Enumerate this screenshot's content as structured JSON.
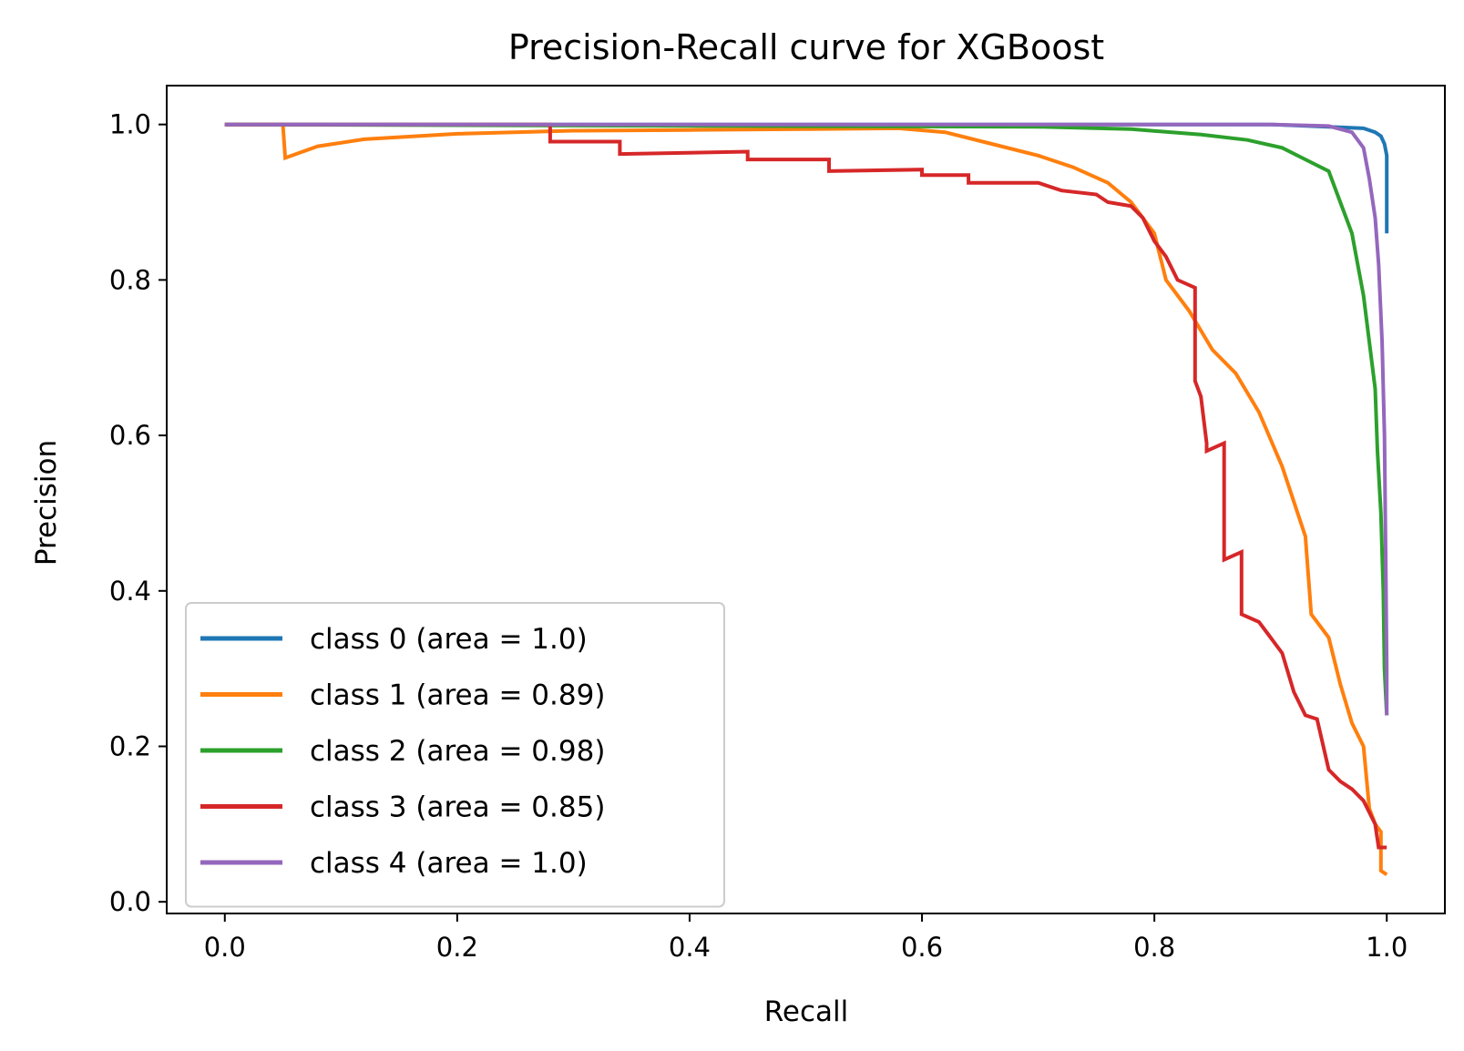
{
  "chart_data": {
    "type": "line",
    "title": "Precision-Recall curve for XGBoost",
    "xlabel": "Recall",
    "ylabel": "Precision",
    "xlim": [
      -0.05,
      1.05
    ],
    "ylim": [
      -0.015,
      1.05
    ],
    "xticks": [
      "0.0",
      "0.2",
      "0.4",
      "0.6",
      "0.8",
      "1.0"
    ],
    "yticks": [
      "0.0",
      "0.2",
      "0.4",
      "0.6",
      "0.8",
      "1.0"
    ],
    "grid": false,
    "legend_position": "lower-left",
    "series": [
      {
        "name": "class 0 (area = 1.0)",
        "color": "#1f77b4",
        "points": [
          [
            0,
            1.0
          ],
          [
            0.9,
            1.0
          ],
          [
            0.95,
            0.997
          ],
          [
            0.98,
            0.995
          ],
          [
            0.99,
            0.99
          ],
          [
            0.995,
            0.985
          ],
          [
            0.998,
            0.975
          ],
          [
            1.0,
            0.96
          ],
          [
            1.0,
            0.86
          ]
        ]
      },
      {
        "name": "class 1 (area = 0.89)",
        "color": "#ff7f0e",
        "points": [
          [
            0,
            1.0
          ],
          [
            0.05,
            1.0
          ],
          [
            0.052,
            0.957
          ],
          [
            0.08,
            0.972
          ],
          [
            0.12,
            0.981
          ],
          [
            0.2,
            0.988
          ],
          [
            0.3,
            0.992
          ],
          [
            0.4,
            0.993
          ],
          [
            0.5,
            0.994
          ],
          [
            0.58,
            0.995
          ],
          [
            0.62,
            0.99
          ],
          [
            0.66,
            0.975
          ],
          [
            0.7,
            0.96
          ],
          [
            0.73,
            0.945
          ],
          [
            0.76,
            0.925
          ],
          [
            0.78,
            0.9
          ],
          [
            0.8,
            0.86
          ],
          [
            0.81,
            0.8
          ],
          [
            0.83,
            0.76
          ],
          [
            0.85,
            0.71
          ],
          [
            0.87,
            0.68
          ],
          [
            0.89,
            0.63
          ],
          [
            0.91,
            0.56
          ],
          [
            0.93,
            0.47
          ],
          [
            0.935,
            0.37
          ],
          [
            0.95,
            0.34
          ],
          [
            0.96,
            0.28
          ],
          [
            0.97,
            0.23
          ],
          [
            0.98,
            0.2
          ],
          [
            0.985,
            0.12
          ],
          [
            0.99,
            0.1
          ],
          [
            0.995,
            0.09
          ],
          [
            0.995,
            0.04
          ],
          [
            1.0,
            0.035
          ]
        ]
      },
      {
        "name": "class 2 (area = 0.98)",
        "color": "#2ca02c",
        "points": [
          [
            0,
            1.0
          ],
          [
            0.45,
            0.998
          ],
          [
            0.7,
            0.997
          ],
          [
            0.78,
            0.994
          ],
          [
            0.84,
            0.987
          ],
          [
            0.88,
            0.98
          ],
          [
            0.91,
            0.97
          ],
          [
            0.93,
            0.955
          ],
          [
            0.95,
            0.94
          ],
          [
            0.96,
            0.9
          ],
          [
            0.97,
            0.86
          ],
          [
            0.975,
            0.82
          ],
          [
            0.98,
            0.78
          ],
          [
            0.985,
            0.72
          ],
          [
            0.99,
            0.66
          ],
          [
            0.992,
            0.58
          ],
          [
            0.995,
            0.5
          ],
          [
            0.997,
            0.4
          ],
          [
            0.998,
            0.3
          ],
          [
            1.0,
            0.24
          ]
        ]
      },
      {
        "name": "class 3 (area = 0.85)",
        "color": "#d62728",
        "points": [
          [
            0,
            1.0
          ],
          [
            0.28,
            1.0
          ],
          [
            0.28,
            0.978
          ],
          [
            0.34,
            0.978
          ],
          [
            0.34,
            0.962
          ],
          [
            0.45,
            0.965
          ],
          [
            0.45,
            0.955
          ],
          [
            0.52,
            0.955
          ],
          [
            0.52,
            0.94
          ],
          [
            0.6,
            0.942
          ],
          [
            0.6,
            0.935
          ],
          [
            0.64,
            0.935
          ],
          [
            0.64,
            0.925
          ],
          [
            0.7,
            0.925
          ],
          [
            0.72,
            0.915
          ],
          [
            0.75,
            0.91
          ],
          [
            0.76,
            0.9
          ],
          [
            0.78,
            0.895
          ],
          [
            0.79,
            0.88
          ],
          [
            0.8,
            0.85
          ],
          [
            0.81,
            0.83
          ],
          [
            0.82,
            0.8
          ],
          [
            0.835,
            0.79
          ],
          [
            0.835,
            0.67
          ],
          [
            0.84,
            0.65
          ],
          [
            0.845,
            0.59
          ],
          [
            0.845,
            0.58
          ],
          [
            0.86,
            0.59
          ],
          [
            0.86,
            0.44
          ],
          [
            0.875,
            0.45
          ],
          [
            0.875,
            0.37
          ],
          [
            0.89,
            0.36
          ],
          [
            0.9,
            0.34
          ],
          [
            0.91,
            0.32
          ],
          [
            0.92,
            0.27
          ],
          [
            0.93,
            0.24
          ],
          [
            0.94,
            0.235
          ],
          [
            0.95,
            0.17
          ],
          [
            0.96,
            0.155
          ],
          [
            0.97,
            0.145
          ],
          [
            0.98,
            0.13
          ],
          [
            0.99,
            0.1
          ],
          [
            0.993,
            0.07
          ],
          [
            1.0,
            0.07
          ]
        ]
      },
      {
        "name": "class 4 (area = 1.0)",
        "color": "#9467bd",
        "points": [
          [
            0,
            1.0
          ],
          [
            0.9,
            1.0
          ],
          [
            0.95,
            0.998
          ],
          [
            0.97,
            0.99
          ],
          [
            0.98,
            0.97
          ],
          [
            0.985,
            0.93
          ],
          [
            0.99,
            0.88
          ],
          [
            0.993,
            0.82
          ],
          [
            0.996,
            0.72
          ],
          [
            0.998,
            0.6
          ],
          [
            0.999,
            0.45
          ],
          [
            1.0,
            0.3
          ],
          [
            1.0,
            0.24
          ]
        ]
      }
    ]
  }
}
